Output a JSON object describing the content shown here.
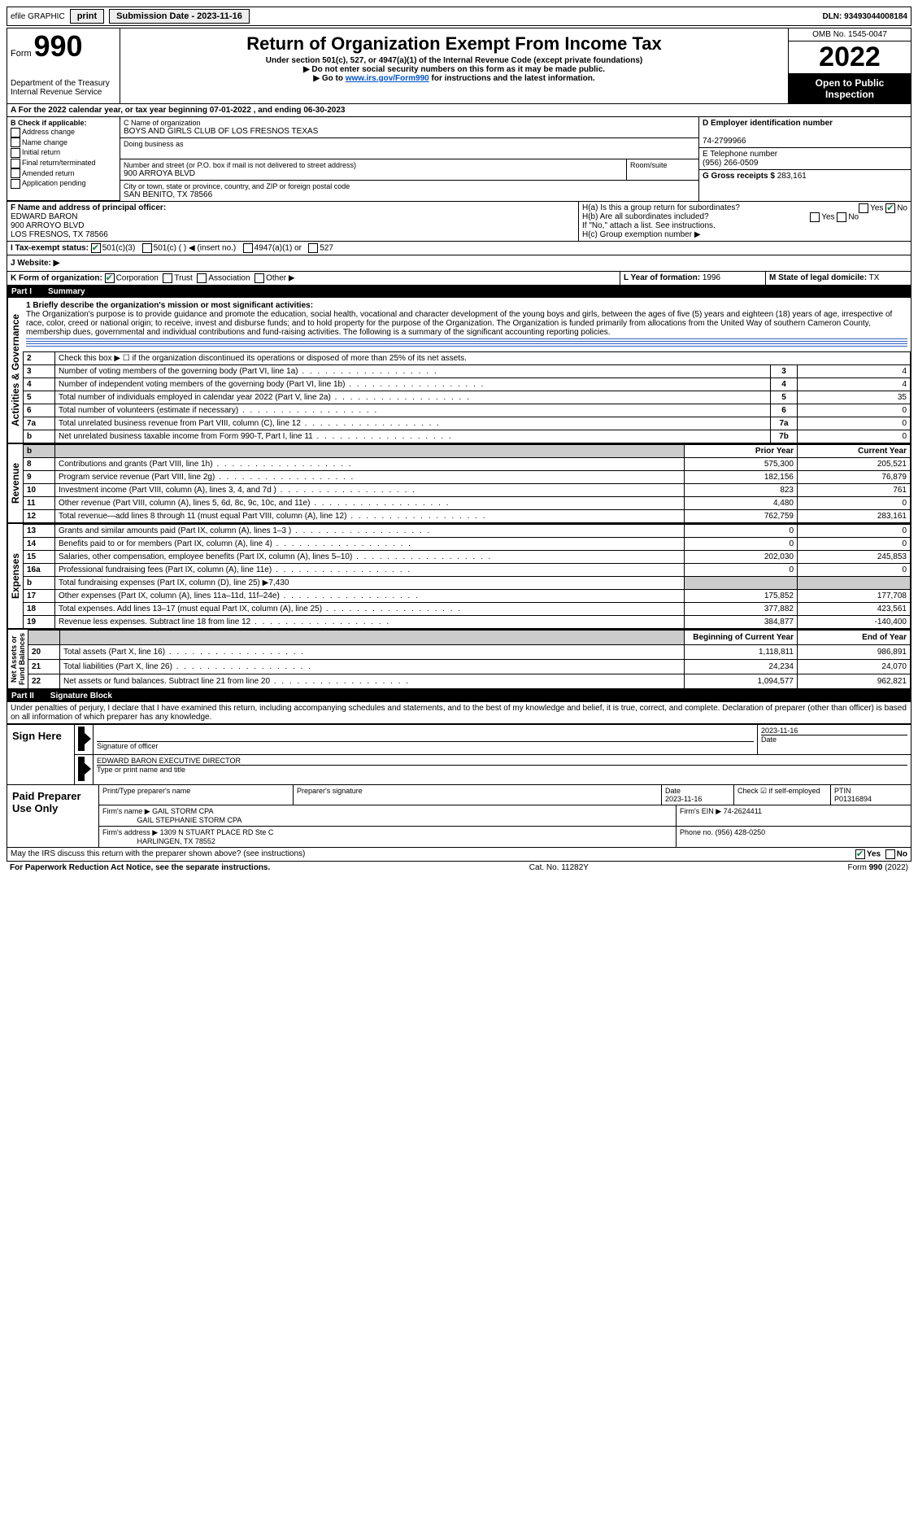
{
  "top": {
    "efile": "efile GRAPHIC",
    "print": "print",
    "sub_date_label": "Submission Date - 2023-11-16",
    "dln": "DLN: 93493044008184"
  },
  "header": {
    "form_prefix": "Form",
    "form_num": "990",
    "dept": "Department of the Treasury",
    "irs": "Internal Revenue Service",
    "title": "Return of Organization Exempt From Income Tax",
    "sub1": "Under section 501(c), 527, or 4947(a)(1) of the Internal Revenue Code (except private foundations)",
    "sub2_arrow": "▶ Do not enter social security numbers on this form as it may be made public.",
    "sub3_pre": "▶ Go to ",
    "sub3_link": "www.irs.gov/Form990",
    "sub3_post": " for instructions and the latest information.",
    "omb": "OMB No. 1545-0047",
    "year": "2022",
    "open": "Open to Public Inspection"
  },
  "a_line": "A For the 2022 calendar year, or tax year beginning 07-01-2022   , and ending 06-30-2023",
  "b": {
    "label": "B Check if applicable:",
    "items": [
      "Address change",
      "Name change",
      "Initial return",
      "Final return/terminated",
      "Amended return",
      "Application pending"
    ]
  },
  "c": {
    "name_label": "C Name of organization",
    "name": "BOYS AND GIRLS CLUB OF LOS FRESNOS TEXAS",
    "dba_label": "Doing business as",
    "street_label": "Number and street (or P.O. box if mail is not delivered to street address)",
    "street": "900 ARROYA BLVD",
    "room_label": "Room/suite",
    "city_label": "City or town, state or province, country, and ZIP or foreign postal code",
    "city": "SAN BENITO, TX  78566"
  },
  "d": {
    "label": "D Employer identification number",
    "value": "74-2799966"
  },
  "e": {
    "label": "E Telephone number",
    "value": "(956) 266-0509"
  },
  "g": {
    "label": "G Gross receipts $",
    "value": "283,161"
  },
  "f": {
    "label": "F  Name and address of principal officer:",
    "name": "EDWARD BARON",
    "addr1": "900 ARROYO BLVD",
    "addr2": "LOS FRESNOS, TX  78566"
  },
  "h": {
    "a": "H(a)  Is this a group return for subordinates?",
    "b": "H(b)  Are all subordinates included?",
    "attach": "If \"No,\" attach a list. See instructions.",
    "c": "H(c)  Group exemption number ▶"
  },
  "i": {
    "label": "I    Tax-exempt status:",
    "o1": "501(c)(3)",
    "o2": "501(c) (   ) ◀ (insert no.)",
    "o3": "4947(a)(1) or",
    "o4": "527"
  },
  "j": "J   Website: ▶",
  "k": "K Form of organization:",
  "k_opts": [
    "Corporation",
    "Trust",
    "Association",
    "Other ▶"
  ],
  "l": {
    "label": "L Year of formation:",
    "value": "1996"
  },
  "m": {
    "label": "M State of legal domicile:",
    "value": "TX"
  },
  "part1": {
    "label": "Part I",
    "title": "Summary"
  },
  "mission_label": "1  Briefly describe the organization's mission or most significant activities:",
  "mission": "The Organization's purpose is to provide guidance and promote the education, social health, vocational and character development of the young boys and girls, between the ages of five (5) years and eighteen (18) years of age, irrespective of race, color, creed or national origin; to receive, invest and disburse funds; and to hold property for the purpose of the Organization. The Organization is funded primarily from allocations from the United Way of southern Cameron County, membership dues, governmental and individual contributions and fund-raising activities. The following is a summary of the significant accounting reporting policies.",
  "gov_lines": [
    {
      "n": "2",
      "text": "Check this box ▶ ☐ if the organization discontinued its operations or disposed of more than 25% of its net assets."
    },
    {
      "n": "3",
      "text": "Number of voting members of the governing body (Part VI, line 1a)",
      "idx": "3",
      "val": "4"
    },
    {
      "n": "4",
      "text": "Number of independent voting members of the governing body (Part VI, line 1b)",
      "idx": "4",
      "val": "4"
    },
    {
      "n": "5",
      "text": "Total number of individuals employed in calendar year 2022 (Part V, line 2a)",
      "idx": "5",
      "val": "35"
    },
    {
      "n": "6",
      "text": "Total number of volunteers (estimate if necessary)",
      "idx": "6",
      "val": "0"
    },
    {
      "n": "7a",
      "text": "Total unrelated business revenue from Part VIII, column (C), line 12",
      "idx": "7a",
      "val": "0"
    },
    {
      "n": "b",
      "text": "Net unrelated business taxable income from Form 990-T, Part I, line 11",
      "idx": "7b",
      "val": "0"
    }
  ],
  "col_headers": {
    "prior": "Prior Year",
    "current": "Current Year"
  },
  "revenue": [
    {
      "n": "8",
      "text": "Contributions and grants (Part VIII, line 1h)",
      "p": "575,300",
      "c": "205,521"
    },
    {
      "n": "9",
      "text": "Program service revenue (Part VIII, line 2g)",
      "p": "182,156",
      "c": "76,879"
    },
    {
      "n": "10",
      "text": "Investment income (Part VIII, column (A), lines 3, 4, and 7d )",
      "p": "823",
      "c": "761"
    },
    {
      "n": "11",
      "text": "Other revenue (Part VIII, column (A), lines 5, 6d, 8c, 9c, 10c, and 11e)",
      "p": "4,480",
      "c": "0"
    },
    {
      "n": "12",
      "text": "Total revenue—add lines 8 through 11 (must equal Part VIII, column (A), line 12)",
      "p": "762,759",
      "c": "283,161"
    }
  ],
  "expenses": [
    {
      "n": "13",
      "text": "Grants and similar amounts paid (Part IX, column (A), lines 1–3 )",
      "p": "0",
      "c": "0"
    },
    {
      "n": "14",
      "text": "Benefits paid to or for members (Part IX, column (A), line 4)",
      "p": "0",
      "c": "0"
    },
    {
      "n": "15",
      "text": "Salaries, other compensation, employee benefits (Part IX, column (A), lines 5–10)",
      "p": "202,030",
      "c": "245,853"
    },
    {
      "n": "16a",
      "text": "Professional fundraising fees (Part IX, column (A), line 11e)",
      "p": "0",
      "c": "0"
    },
    {
      "n": "b",
      "text": "Total fundraising expenses (Part IX, column (D), line 25) ▶7,430",
      "p": "",
      "c": "",
      "shaded": true
    },
    {
      "n": "17",
      "text": "Other expenses (Part IX, column (A), lines 11a–11d, 11f–24e)",
      "p": "175,852",
      "c": "177,708"
    },
    {
      "n": "18",
      "text": "Total expenses. Add lines 13–17 (must equal Part IX, column (A), line 25)",
      "p": "377,882",
      "c": "423,561"
    },
    {
      "n": "19",
      "text": "Revenue less expenses. Subtract line 18 from line 12",
      "p": "384,877",
      "c": "-140,400"
    }
  ],
  "na_headers": {
    "begin": "Beginning of Current Year",
    "end": "End of Year"
  },
  "netassets": [
    {
      "n": "20",
      "text": "Total assets (Part X, line 16)",
      "p": "1,118,811",
      "c": "986,891"
    },
    {
      "n": "21",
      "text": "Total liabilities (Part X, line 26)",
      "p": "24,234",
      "c": "24,070"
    },
    {
      "n": "22",
      "text": "Net assets or fund balances. Subtract line 21 from line 20",
      "p": "1,094,577",
      "c": "962,821"
    }
  ],
  "part2": {
    "label": "Part II",
    "title": "Signature Block"
  },
  "perjury": "Under penalties of perjury, I declare that I have examined this return, including accompanying schedules and statements, and to the best of my knowledge and belief, it is true, correct, and complete. Declaration of preparer (other than officer) is based on all information of which preparer has any knowledge.",
  "sign": {
    "here": "Sign Here",
    "sig_label": "Signature of officer",
    "date": "2023-11-16",
    "date_label": "Date",
    "name": "EDWARD BARON  EXECUTIVE DIRECTOR",
    "name_label": "Type or print name and title"
  },
  "paid": {
    "label": "Paid Preparer Use Only",
    "p1": "Print/Type preparer's name",
    "p2": "Preparer's signature",
    "p3": "Date",
    "date": "2023-11-16",
    "check": "Check ☑ if self-employed",
    "ptin_l": "PTIN",
    "ptin": "P01316894",
    "firm_l": "Firm's name  ▶",
    "firm": "GAIL STORM CPA",
    "firm2": "GAIL STEPHANIE STORM CPA",
    "ein_l": "Firm's EIN ▶",
    "ein": "74-2624411",
    "addr_l": "Firm's address ▶",
    "addr": "1309 N STUART PLACE RD Ste C",
    "addr2": "HARLINGEN, TX  78552",
    "phone_l": "Phone no.",
    "phone": "(956) 428-0250"
  },
  "discuss": "May the IRS discuss this return with the preparer shown above? (see instructions)",
  "yes": "Yes",
  "no": "No",
  "footer": {
    "left": "For Paperwork Reduction Act Notice, see the separate instructions.",
    "mid": "Cat. No. 11282Y",
    "right": "Form 990 (2022)"
  }
}
